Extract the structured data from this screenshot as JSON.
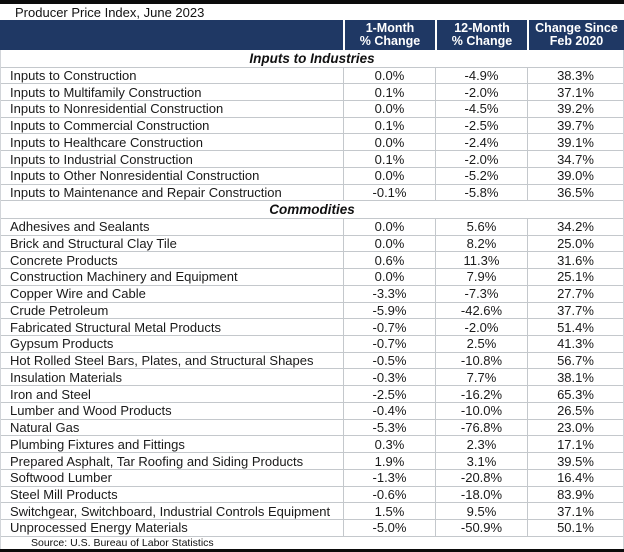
{
  "title": "Producer Price Index, June 2023",
  "source": "Source: U.S. Bureau of Labor Statistics",
  "colors": {
    "header_bg": "#1F3864",
    "header_text": "#FFFFFF",
    "gridline": "#C4C8CC",
    "frame_bar": "#0B0B0B"
  },
  "chart_data": {
    "type": "table",
    "title": "Producer Price Index, June 2023",
    "columns": [
      "",
      "1-Month\n% Change",
      "12-Month\n% Change",
      "Change Since\nFeb 2020"
    ],
    "sections": [
      {
        "title": "Inputs to Industries",
        "rows": [
          {
            "label": "Inputs to Construction",
            "values": [
              "0.0%",
              "-4.9%",
              "38.3%"
            ]
          },
          {
            "label": "Inputs to Multifamily Construction",
            "values": [
              "0.1%",
              "-2.0%",
              "37.1%"
            ]
          },
          {
            "label": "Inputs to Nonresidential Construction",
            "values": [
              "0.0%",
              "-4.5%",
              "39.2%"
            ]
          },
          {
            "label": "Inputs to Commercial Construction",
            "values": [
              "0.1%",
              "-2.5%",
              "39.7%"
            ]
          },
          {
            "label": "Inputs to Healthcare Construction",
            "values": [
              "0.0%",
              "-2.4%",
              "39.1%"
            ]
          },
          {
            "label": "Inputs to Industrial Construction",
            "values": [
              "0.1%",
              "-2.0%",
              "34.7%"
            ]
          },
          {
            "label": "Inputs to Other Nonresidential Construction",
            "values": [
              "0.0%",
              "-5.2%",
              "39.0%"
            ]
          },
          {
            "label": "Inputs to Maintenance and Repair Construction",
            "values": [
              "-0.1%",
              "-5.8%",
              "36.5%"
            ]
          }
        ]
      },
      {
        "title": "Commodities",
        "rows": [
          {
            "label": "Adhesives and Sealants",
            "values": [
              "0.0%",
              "5.6%",
              "34.2%"
            ]
          },
          {
            "label": "Brick and Structural Clay Tile",
            "values": [
              "0.0%",
              "8.2%",
              "25.0%"
            ]
          },
          {
            "label": "Concrete Products",
            "values": [
              "0.6%",
              "11.3%",
              "31.6%"
            ]
          },
          {
            "label": "Construction Machinery and Equipment",
            "values": [
              "0.0%",
              "7.9%",
              "25.1%"
            ]
          },
          {
            "label": "Copper Wire and Cable",
            "values": [
              "-3.3%",
              "-7.3%",
              "27.7%"
            ]
          },
          {
            "label": "Crude Petroleum",
            "values": [
              "-5.9%",
              "-42.6%",
              "37.7%"
            ]
          },
          {
            "label": "Fabricated Structural Metal Products",
            "values": [
              "-0.7%",
              "-2.0%",
              "51.4%"
            ]
          },
          {
            "label": "Gypsum Products",
            "values": [
              "-0.7%",
              "2.5%",
              "41.3%"
            ]
          },
          {
            "label": "Hot Rolled Steel Bars, Plates, and Structural Shapes",
            "values": [
              "-0.5%",
              "-10.8%",
              "56.7%"
            ]
          },
          {
            "label": "Insulation Materials",
            "values": [
              "-0.3%",
              "7.7%",
              "38.1%"
            ]
          },
          {
            "label": "Iron and Steel",
            "values": [
              "-2.5%",
              "-16.2%",
              "65.3%"
            ]
          },
          {
            "label": "Lumber and Wood Products",
            "values": [
              "-0.4%",
              "-10.0%",
              "26.5%"
            ]
          },
          {
            "label": "Natural Gas",
            "values": [
              "-5.3%",
              "-76.8%",
              "23.0%"
            ]
          },
          {
            "label": "Plumbing Fixtures and Fittings",
            "values": [
              "0.3%",
              "2.3%",
              "17.1%"
            ]
          },
          {
            "label": "Prepared Asphalt, Tar Roofing and Siding Products",
            "values": [
              "1.9%",
              "3.1%",
              "39.5%"
            ]
          },
          {
            "label": "Softwood Lumber",
            "values": [
              "-1.3%",
              "-20.8%",
              "16.4%"
            ]
          },
          {
            "label": "Steel Mill Products",
            "values": [
              "-0.6%",
              "-18.0%",
              "83.9%"
            ]
          },
          {
            "label": "Switchgear, Switchboard, Industrial Controls Equipment",
            "values": [
              "1.5%",
              "9.5%",
              "37.1%"
            ]
          },
          {
            "label": "Unprocessed Energy Materials",
            "values": [
              "-5.0%",
              "-50.9%",
              "50.1%"
            ]
          }
        ]
      }
    ],
    "source": "Source: U.S. Bureau of Labor Statistics"
  }
}
